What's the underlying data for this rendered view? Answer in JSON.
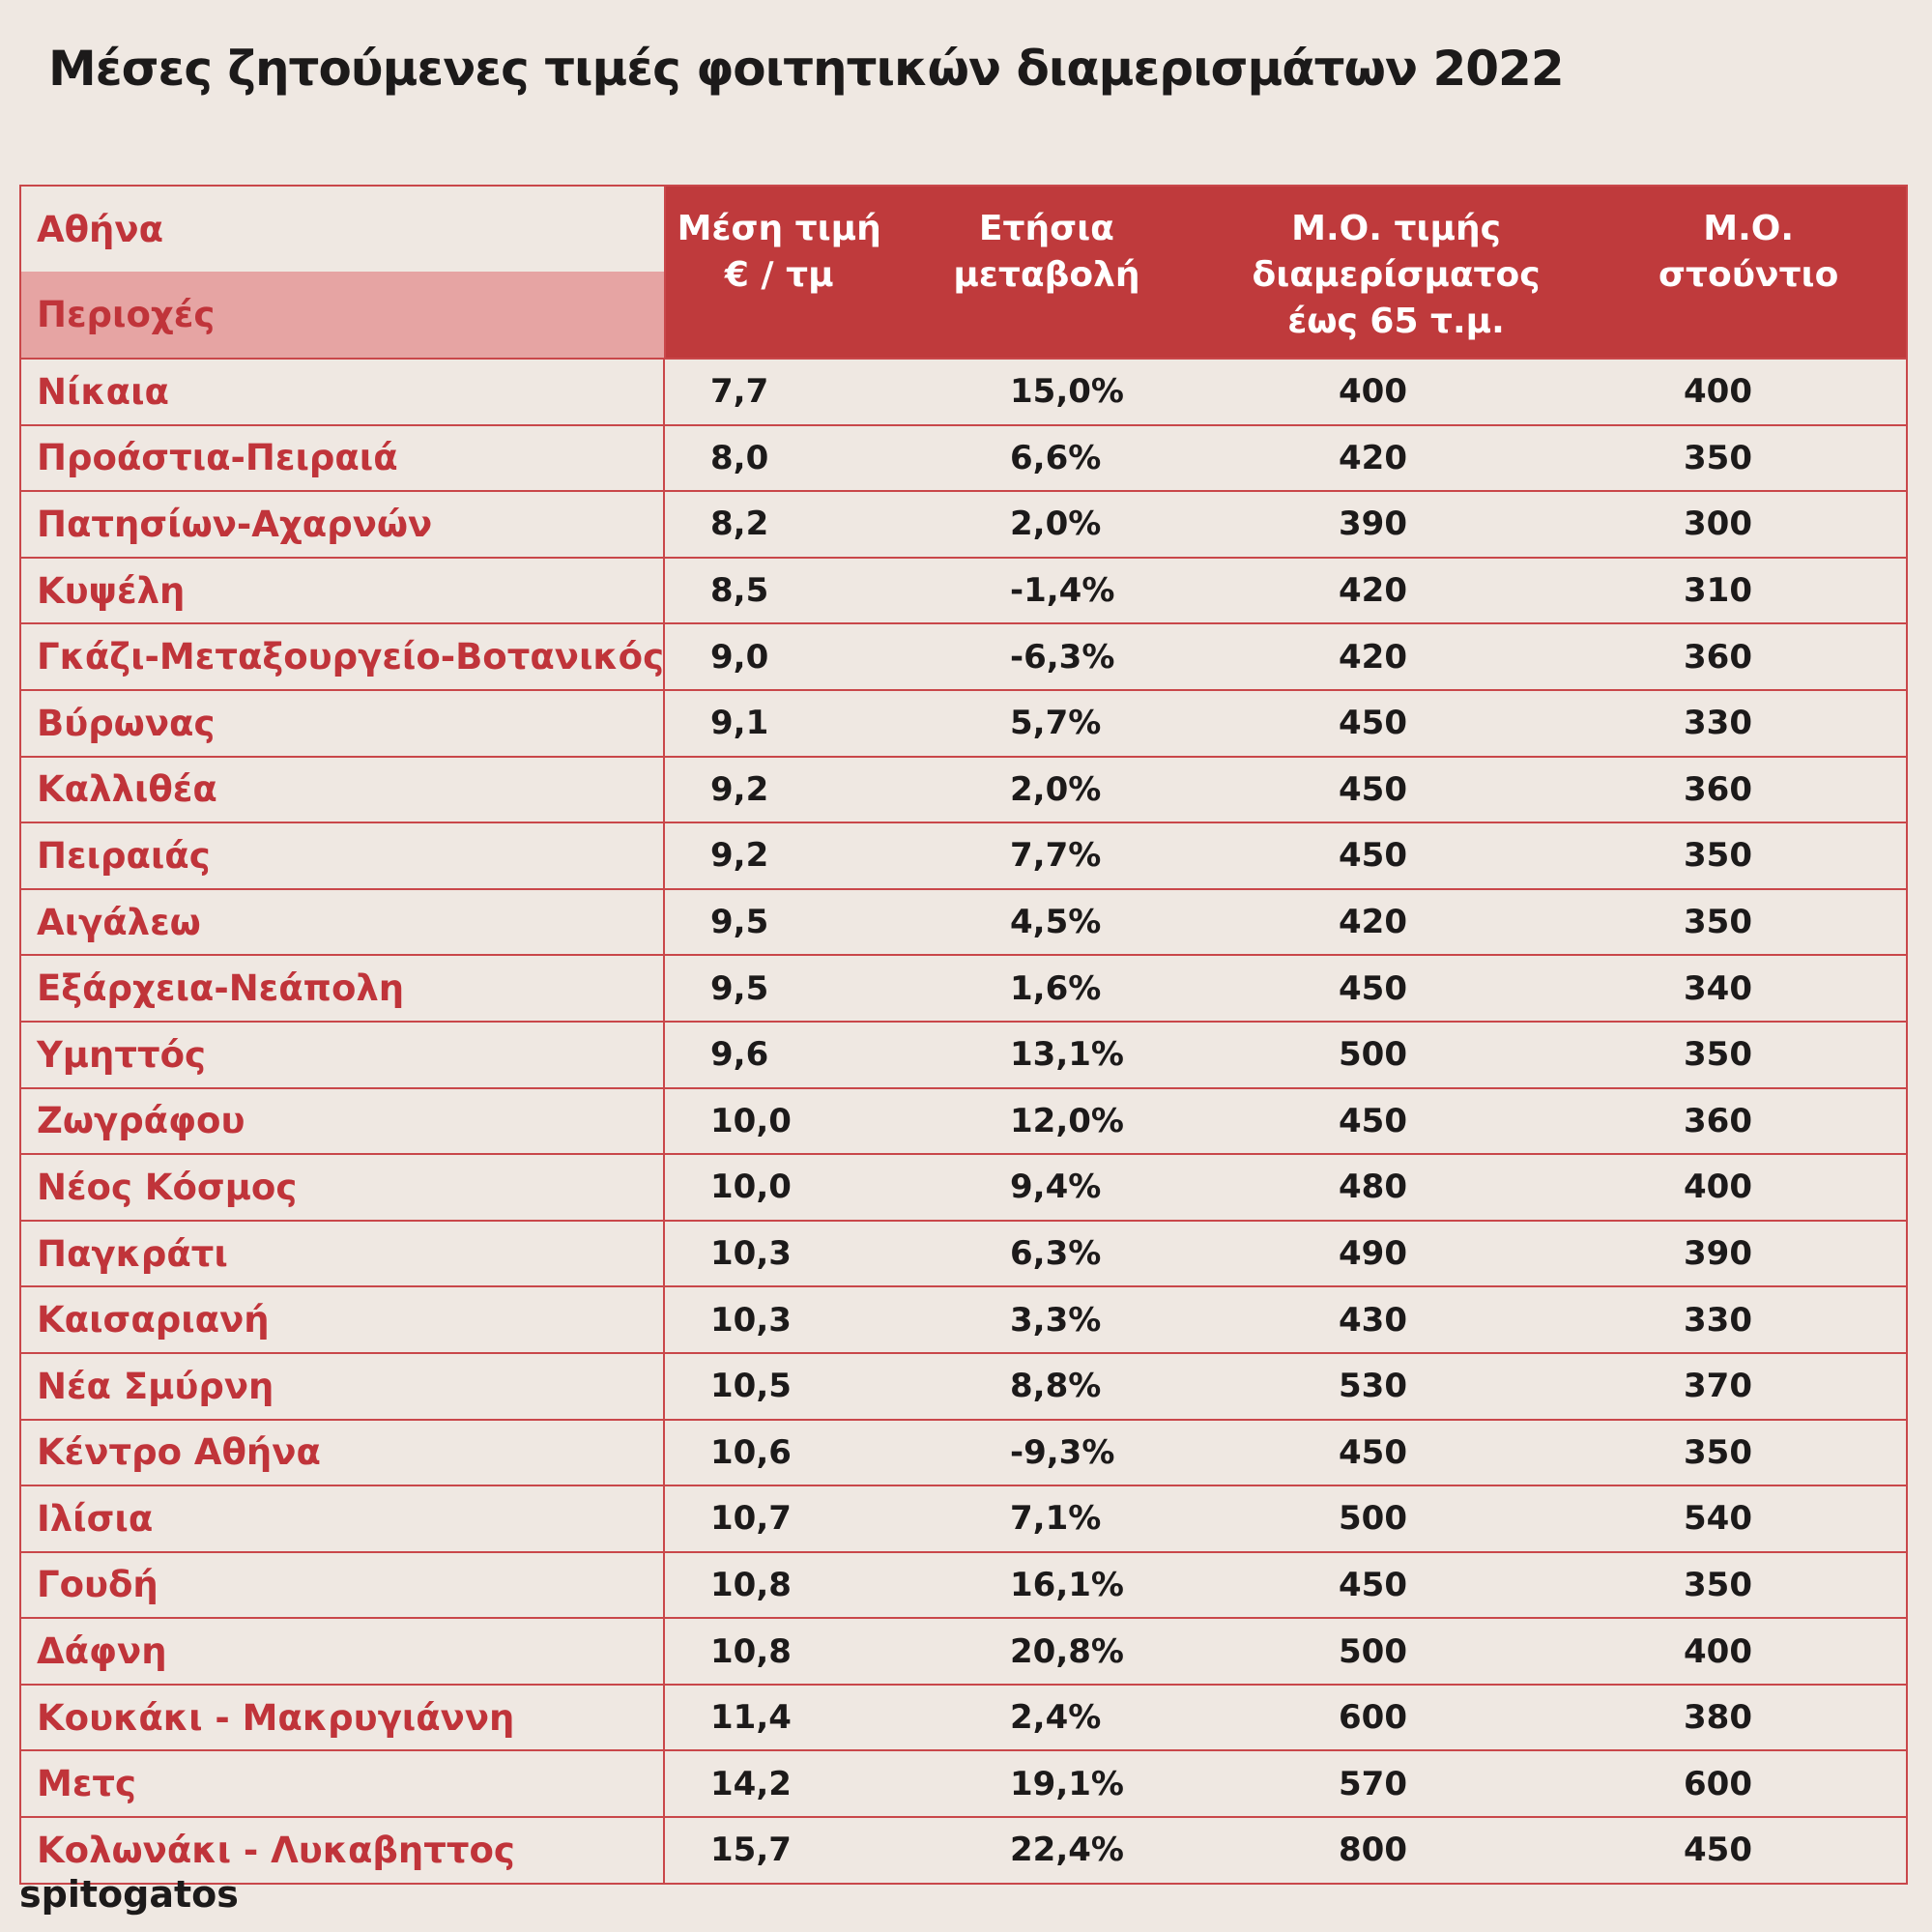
{
  "header": {
    "title": "Μέσες ζητούμενες τιμές φοιτητικών διαμερισμάτων 2022"
  },
  "table": {
    "corner": "Αθήνα",
    "subheader": "Περιοχές",
    "columns": [
      "Μέση τιμή\n€ / τμ",
      "Ετήσια\nμεταβολή",
      "Μ.Ο. τιμής\nδιαμερίσματος\nέως 65 τ.μ.",
      "Μ.Ο.\nστούντιο"
    ],
    "rows": [
      [
        "Νίκαια",
        "7,7",
        "15,0%",
        "400",
        "400"
      ],
      [
        "Προάστια-Πειραιά",
        "8,0",
        "6,6%",
        "420",
        "350"
      ],
      [
        "Πατησίων-Αχαρνών",
        "8,2",
        "2,0%",
        "390",
        "300"
      ],
      [
        "Κυψέλη",
        "8,5",
        "-1,4%",
        "420",
        "310"
      ],
      [
        "Γκάζι-Μεταξουργείο-Βοτανικός",
        "9,0",
        "-6,3%",
        "420",
        "360"
      ],
      [
        "Βύρωνας",
        "9,1",
        "5,7%",
        "450",
        "330"
      ],
      [
        "Καλλιθέα",
        "9,2",
        "2,0%",
        "450",
        "360"
      ],
      [
        "Πειραιάς",
        "9,2",
        "7,7%",
        "450",
        "350"
      ],
      [
        "Αιγάλεω",
        "9,5",
        "4,5%",
        "420",
        "350"
      ],
      [
        "Εξάρχεια-Νεάπολη",
        "9,5",
        "1,6%",
        "450",
        "340"
      ],
      [
        "Υμηττός",
        "9,6",
        "13,1%",
        "500",
        "350"
      ],
      [
        "Ζωγράφου",
        "10,0",
        "12,0%",
        "450",
        "360"
      ],
      [
        "Νέος Κόσμος",
        "10,0",
        "9,4%",
        "480",
        "400"
      ],
      [
        "Παγκράτι",
        "10,3",
        "6,3%",
        "490",
        "390"
      ],
      [
        "Καισαριανή",
        "10,3",
        "3,3%",
        "430",
        "330"
      ],
      [
        "Νέα Σμύρνη",
        "10,5",
        "8,8%",
        "530",
        "370"
      ],
      [
        "Κέντρο Αθήνα",
        "10,6",
        "-9,3%",
        "450",
        "350"
      ],
      [
        "Ιλίσια",
        "10,7",
        "7,1%",
        "500",
        "540"
      ],
      [
        "Γουδή",
        "10,8",
        "16,1%",
        "450",
        "350"
      ],
      [
        "Δάφνη",
        "10,8",
        "20,8%",
        "500",
        "400"
      ],
      [
        "Κουκάκι - Μακρυγιάννη",
        "11,4",
        "2,4%",
        "600",
        "380"
      ],
      [
        "Μετς",
        "14,2",
        "19,1%",
        "570",
        "600"
      ],
      [
        "Κολωνάκι - Λυκαβηττος",
        "15,7",
        "22,4%",
        "800",
        "450"
      ]
    ]
  },
  "footer": {
    "brand": "spitogatos"
  }
}
